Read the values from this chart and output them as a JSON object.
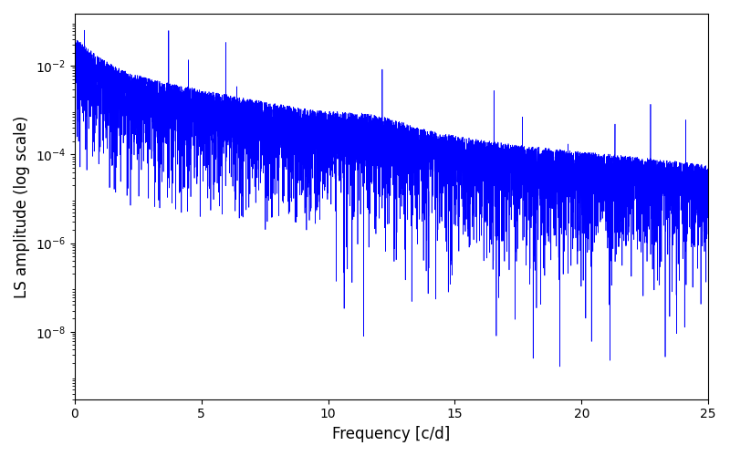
{
  "title": "",
  "xlabel": "Frequency [c/d]",
  "ylabel": "LS amplitude (log scale)",
  "xlim": [
    0,
    25
  ],
  "ylim": [
    3e-10,
    0.15
  ],
  "line_color": "#0000ff",
  "line_width": 0.5,
  "figsize": [
    8.0,
    5.0
  ],
  "dpi": 100,
  "seed": 42,
  "n_points": 8000,
  "background_color": "#ffffff"
}
